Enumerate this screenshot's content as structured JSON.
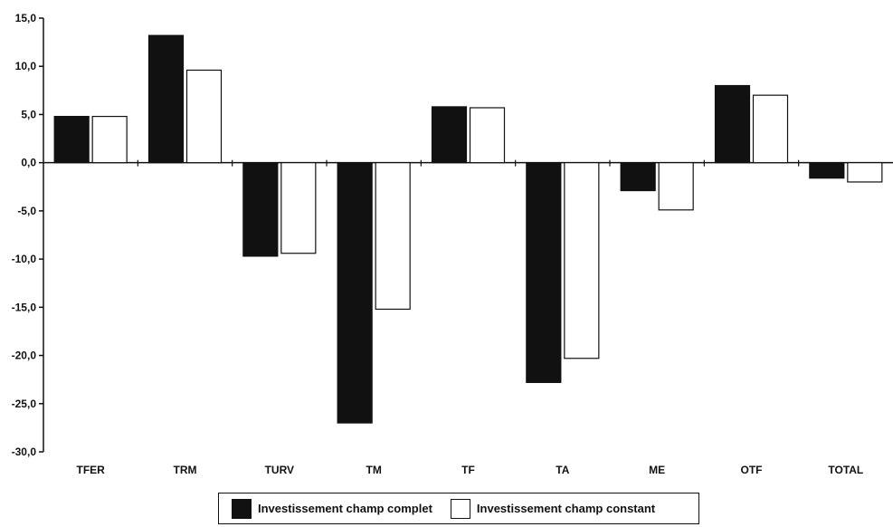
{
  "chart_data": {
    "type": "bar",
    "categories": [
      "TFER",
      "TRM",
      "TURV",
      "TM",
      "TF",
      "TA",
      "ME",
      "OTF",
      "TOTAL"
    ],
    "series": [
      {
        "name": "Investissement champ complet",
        "color": "#111111",
        "values": [
          4.8,
          13.2,
          -9.7,
          -27.0,
          5.8,
          -22.8,
          -2.9,
          8.0,
          -1.6
        ]
      },
      {
        "name": "Investissement champ constant",
        "color": "#ffffff",
        "values": [
          4.8,
          9.6,
          -9.4,
          -15.2,
          5.7,
          -20.3,
          -4.9,
          7.0,
          -2.0
        ]
      }
    ],
    "yticks": [
      "15,0",
      "10,0",
      "5,0",
      "0,0",
      "-5,0",
      "-10,0",
      "-15,0",
      "-20,0",
      "-25,0",
      "-30,0"
    ],
    "ylim": [
      -30,
      15
    ],
    "title": "",
    "xlabel": "",
    "ylabel": "",
    "grid": false,
    "legend_position": "bottom"
  }
}
